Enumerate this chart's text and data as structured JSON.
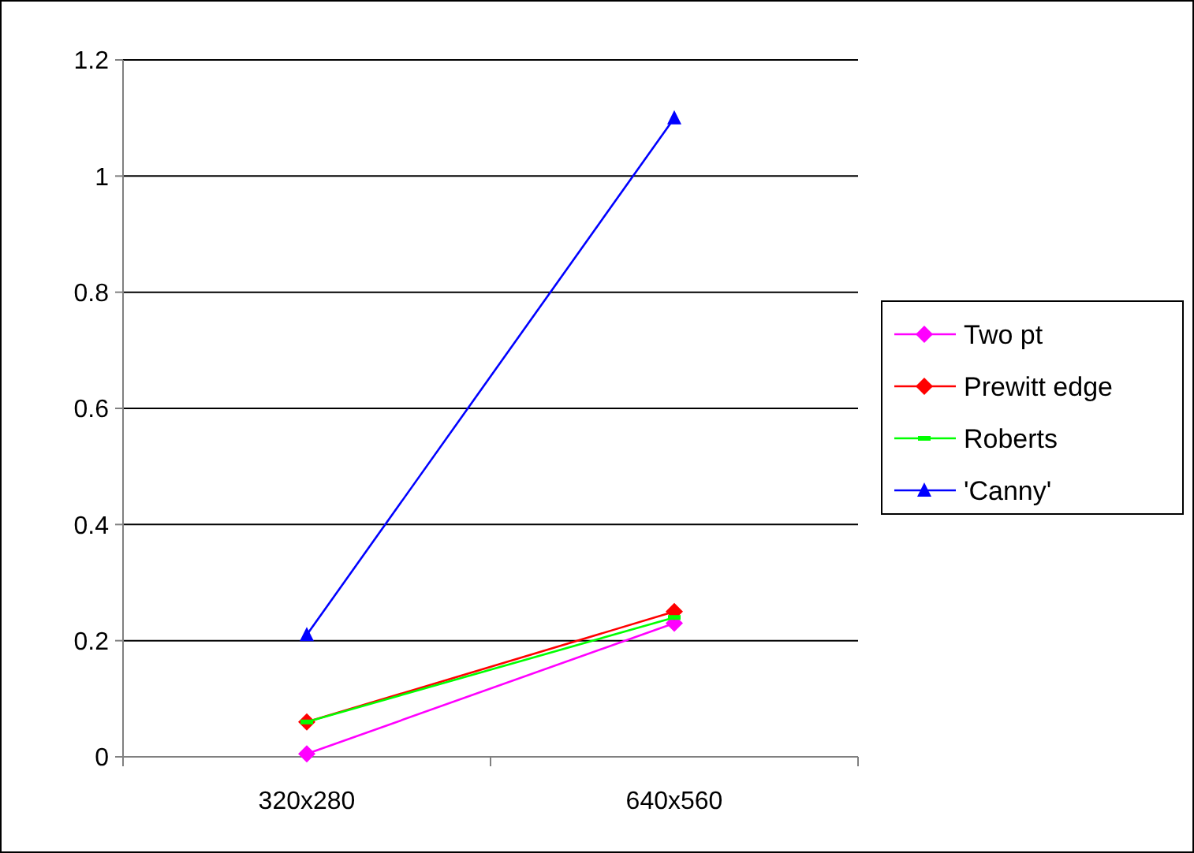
{
  "chart_data": {
    "type": "line",
    "categories": [
      "320x280",
      "640x560"
    ],
    "series": [
      {
        "name": "Two pt",
        "color": "#ff00ff",
        "marker": "diamond",
        "values": [
          0.005,
          0.23
        ]
      },
      {
        "name": "Prewitt edge",
        "color": "#ff0000",
        "marker": "diamond",
        "values": [
          0.06,
          0.25
        ]
      },
      {
        "name": "Roberts",
        "color": "#00ff00",
        "marker": "square",
        "values": [
          0.06,
          0.24
        ]
      },
      {
        "name": "'Canny'",
        "color": "#0000ff",
        "marker": "triangle",
        "values": [
          0.21,
          1.1
        ]
      }
    ],
    "ylim": [
      0,
      1.2
    ],
    "yticks": [
      0,
      0.2,
      0.4,
      0.6,
      0.8,
      1,
      1.2
    ],
    "grid": "y",
    "legend": "right"
  }
}
